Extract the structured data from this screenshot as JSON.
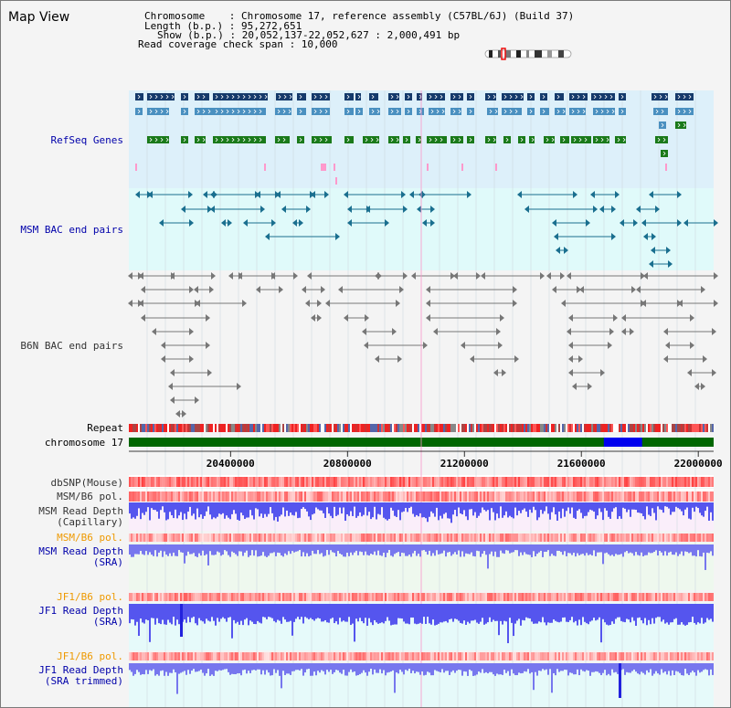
{
  "view_title": "Map View",
  "header": {
    "chromosome_line": "Chromosome    : Chromosome 17, reference assembly (C57BL/6J) (Build 37)",
    "length_line": "Length (b.p.) : 95,272,651",
    "show_line": "Show (b.p.) : 20,052,137-22,052,627 : 2,000,491 bp",
    "coverage_line": "Read coverage check span : 10,000"
  },
  "tracks": {
    "refseq": "RefSeq Genes",
    "msm_bac": "MSM BAC end pairs",
    "b6n_bac": "B6N BAC end pairs",
    "repeat": "Repeat",
    "chromosome": "chromosome 17",
    "dbsnp": "dbSNP(Mouse)",
    "msm_b6_pol_1": "MSM/B6 pol.",
    "msm_read_depth_cap_1": "MSM Read Depth",
    "msm_read_depth_cap_2": "(Capillary)",
    "msm_b6_pol_2": "MSM/B6 pol.",
    "msm_read_depth_sra_1": "MSM Read Depth",
    "msm_read_depth_sra_2": "(SRA)",
    "jf1_b6_pol_1": "JF1/B6 pol.",
    "jf1_read_depth_1": "JF1 Read Depth",
    "jf1_read_depth_2": "(SRA)",
    "jf1_b6_pol_2": "JF1/B6 pol.",
    "jf1_read_depth_trim_1": "JF1 Read Depth",
    "jf1_read_depth_trim_2": "(SRA trimmed)"
  },
  "axis": {
    "range_bp": [
      20052137,
      22052627
    ],
    "ticks": [
      {
        "bp": 20400000,
        "label": "20400000"
      },
      {
        "bp": 20800000,
        "label": "20800000"
      },
      {
        "bp": 21200000,
        "label": "21200000"
      },
      {
        "bp": 21600000,
        "label": "21600000"
      },
      {
        "bp": 22000000,
        "label": "22000000"
      }
    ]
  },
  "highlight_bp": [
    21677000,
    21808000
  ],
  "colors": {
    "label_blue": "#0000aa",
    "label_orange": "#ee9900",
    "refseq_bg": "#ddf0fa",
    "msm_bac_bg": "#e0fafa",
    "gene_dark": "#153a6b",
    "gene_mid": "#4a90c0",
    "gene_green": "#1a7a1a",
    "chromosome_green": "#006600",
    "chromosome_blue": "#0000ee",
    "bac_teal": "#1a6f8f",
    "bac_gray": "#777777",
    "snp_red": "#ee2222",
    "depth_blue": "#3333ee"
  }
}
